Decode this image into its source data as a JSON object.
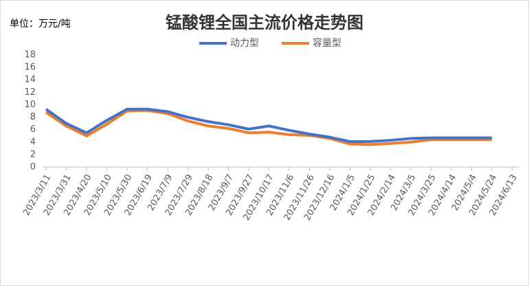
{
  "chart_data": {
    "type": "line",
    "title": "锰酸锂全国主流价格走势图",
    "unit_label": "单位：万元/吨",
    "categories": [
      "2023/3/11",
      "2023/3/31",
      "2023/4/20",
      "2023/5/10",
      "2023/5/30",
      "2023/6/19",
      "2023/7/9",
      "2023/7/29",
      "2023/8/18",
      "2023/9/7",
      "2023/9/27",
      "2023/10/17",
      "2023/11/6",
      "2023/11/26",
      "2023/12/16",
      "2024/1/5",
      "2024/1/25",
      "2024/2/14",
      "2024/3/5",
      "2024/3/25",
      "2024/4/14",
      "2024/5/4",
      "2024/5/24",
      "2024/6/13"
    ],
    "series": [
      {
        "name": "动力型",
        "color": "#4472c4",
        "values": [
          9.3,
          7.0,
          5.5,
          7.5,
          9.3,
          9.3,
          8.9,
          8.0,
          7.3,
          6.8,
          6.1,
          6.6,
          5.9,
          5.3,
          4.8,
          4.1,
          4.1,
          4.3,
          4.6,
          4.7,
          4.7,
          4.7,
          4.7,
          null
        ]
      },
      {
        "name": "容量型",
        "color": "#ed7d31",
        "values": [
          8.8,
          6.6,
          5.0,
          6.9,
          9.0,
          9.1,
          8.6,
          7.4,
          6.6,
          6.2,
          5.5,
          5.6,
          5.2,
          5.1,
          4.6,
          3.7,
          3.6,
          3.8,
          4.0,
          4.4,
          4.4,
          4.4,
          4.4,
          null
        ]
      }
    ],
    "ylim": [
      0,
      18
    ],
    "yticks": [
      0,
      2,
      4,
      6,
      8,
      10,
      12,
      14,
      16,
      18
    ],
    "grid": false,
    "legend": "top"
  }
}
